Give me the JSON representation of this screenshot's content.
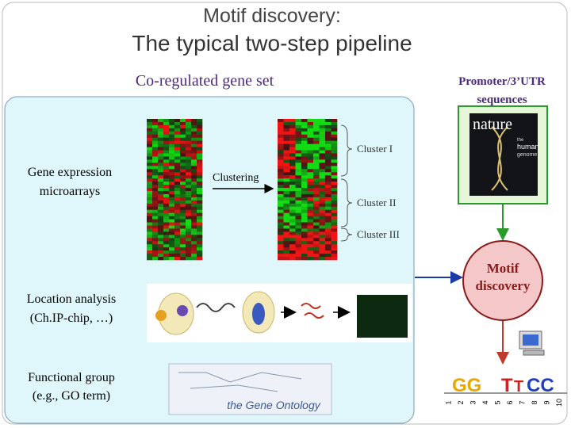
{
  "header": {
    "title": "Motif discovery:",
    "subtitle": "The typical two-step pipeline"
  },
  "left_panel": {
    "title": "Co-regulated gene set",
    "sources": [
      {
        "lines": [
          "Gene expression",
          "microarrays"
        ]
      },
      {
        "lines": [
          "Location analysis",
          "(Ch.IP-chip, …)"
        ]
      },
      {
        "lines": [
          "Functional group",
          "(e.g., GO term)"
        ]
      }
    ],
    "clustering_label": "Clustering",
    "clusters": [
      "Cluster I",
      "Cluster II",
      "Cluster III"
    ],
    "ontology_label": "the Gene Ontology"
  },
  "right_panel": {
    "title_lines": [
      "Promoter/3’UTR",
      "sequences"
    ],
    "journal": {
      "name": "nature",
      "subtitle_lines": [
        "the",
        "human",
        "genome"
      ]
    },
    "step": {
      "lines": [
        "Motif",
        "discovery"
      ]
    },
    "logo": {
      "letters": [
        "GG",
        "T",
        "T",
        "CC"
      ],
      "positions": [
        "1",
        "2",
        "3",
        "4",
        "5",
        "6",
        "7",
        "8",
        "9",
        "10"
      ]
    }
  }
}
